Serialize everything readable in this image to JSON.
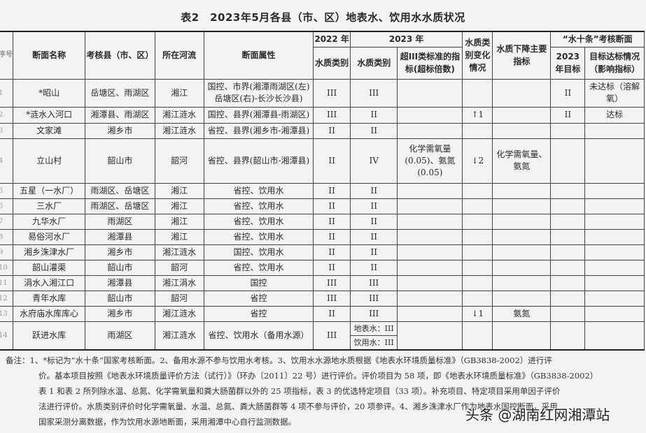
{
  "title": "表2　2023年5月各县（市、区）地表水、饮用水水质状况",
  "header": {
    "seq": "序号",
    "name": "断面名称",
    "county": "考核县（市、区）",
    "river": "所在河流",
    "attr": "断面属性",
    "y2022": "2022 年",
    "y2023": "2023 年",
    "change": "水质类别变化情况",
    "decline": "水质下降主要指标",
    "shuishitiao": "“水十条”考核断面",
    "class2022": "水质类别",
    "class2023": "水质类别",
    "exceed": "超III类标准的指标(超标倍数)",
    "target": "2023 年目标",
    "status": "目标达标情况（影响指标）"
  },
  "rows": [
    {
      "no": "1",
      "name": "*昭山",
      "county": "岳塘区、雨湖区",
      "river": "湘江",
      "attr": "国控、市界(湘潭雨湖区(左)岳塘区(右)-长沙长沙县)",
      "c2022": "III",
      "c2023": "III",
      "exceed": "",
      "change": "",
      "decline": "",
      "target": "II",
      "status": "未达标（溶解氧）"
    },
    {
      "no": "2",
      "name": "*涟水入河口",
      "county": "湘潭县、雨湖区",
      "river": "湘江涟水",
      "attr": "国控、县界(湘潭县-雨湖区)",
      "c2022": "III",
      "c2023": "II",
      "exceed": "",
      "change": "↑1",
      "decline": "",
      "target": "II",
      "status": "达标"
    },
    {
      "no": "3",
      "name": "文家滩",
      "county": "湘乡市",
      "river": "湘江涟水",
      "attr": "省控、县界(湘乡市-湘潭县)",
      "c2022": "II",
      "c2023": "II",
      "exceed": "",
      "change": "",
      "decline": "",
      "target": "",
      "status": ""
    },
    {
      "no": "4",
      "name": "立山村",
      "county": "韶山市",
      "river": "韶河",
      "attr": "省控、县界(韶山市-湘潭县)",
      "c2022": "II",
      "c2023": "IV",
      "exceed": "化学需氧量(0.05)、氨氮(0.05)",
      "change": "↓2",
      "decline": "化学需氧量、氨氮",
      "target": "",
      "status": ""
    },
    {
      "no": "5",
      "name": "五星（一水厂）",
      "county": "雨湖区、岳塘区",
      "river": "湘江",
      "attr": "省控、饮用水",
      "c2022": "II",
      "c2023": "II",
      "exceed": "",
      "change": "",
      "decline": "",
      "target": "",
      "status": ""
    },
    {
      "no": "6",
      "name": "三水厂",
      "county": "雨湖区、岳塘区",
      "river": "湘江",
      "attr": "省控、饮用水",
      "c2022": "II",
      "c2023": "II",
      "exceed": "",
      "change": "",
      "decline": "",
      "target": "",
      "status": ""
    },
    {
      "no": "7",
      "name": "九华水厂",
      "county": "雨湖区",
      "river": "湘江",
      "attr": "省控、饮用水",
      "c2022": "II",
      "c2023": "II",
      "exceed": "",
      "change": "",
      "decline": "",
      "target": "",
      "status": ""
    },
    {
      "no": "8",
      "name": "易俗河水厂",
      "county": "湘潭县",
      "river": "湘江",
      "attr": "省控、饮用水",
      "c2022": "II",
      "c2023": "II",
      "exceed": "",
      "change": "",
      "decline": "",
      "target": "",
      "status": ""
    },
    {
      "no": "9",
      "name": "湘乡洙津水厂",
      "county": "湘乡市",
      "river": "湘江涟水",
      "attr": "国控、饮用水",
      "c2022": "II",
      "c2023": "II",
      "exceed": "",
      "change": "",
      "decline": "",
      "target": "",
      "status": ""
    },
    {
      "no": "10",
      "name": "韶山灌渠",
      "county": "韶山市",
      "river": "韶河",
      "attr": "省控、饮用水",
      "c2022": "II",
      "c2023": "II",
      "exceed": "",
      "change": "",
      "decline": "",
      "target": "",
      "status": ""
    },
    {
      "no": "11",
      "name": "涓水入湘江口",
      "county": "湘潭县",
      "river": "湘江涓水",
      "attr": "国控",
      "c2022": "III",
      "c2023": "III",
      "exceed": "",
      "change": "",
      "decline": "",
      "target": "",
      "status": ""
    },
    {
      "no": "12",
      "name": "青年水库",
      "county": "韶山市",
      "river": "韶河",
      "attr": "省控",
      "c2022": "III",
      "c2023": "III",
      "exceed": "",
      "change": "",
      "decline": "",
      "target": "",
      "status": ""
    },
    {
      "no": "13",
      "name": "水府庙水库库心",
      "county": "湘乡市",
      "river": "湘江涟水",
      "attr": "省控",
      "c2022": "II",
      "c2023": "III",
      "exceed": "",
      "change": "↓1",
      "decline": "氨氮",
      "target": "",
      "status": ""
    },
    {
      "no": "14",
      "name": "跃进水库",
      "county": "雨湖区",
      "river": "湘江涟水",
      "attr": "省控、饮用水（备用水源）",
      "c2022": "III",
      "c2023_surface": "地表水：III",
      "c2023_drinking": "饮用水：III",
      "exceed": "",
      "change": "",
      "decline": "",
      "target": "",
      "status": ""
    }
  ],
  "notes": {
    "line1": "备注：1、*标记为“水十条“国家考核断面。2、备用水源不参与饮用水考核。3、饮用水水源地水质根据《地表水环境质量标准》（GB3838-2002）进行评",
    "line2": "价。基本项目按照《地表水环境质量评价方法（试行）》（环办〔2011〕22 号）进行评价。评价项目为 58 项，即《地表水环境质量标准》（GB3838-2002）",
    "line3": "表 1 和表 2 所列除水温、总氮、化学需氧量和粪大肠菌群以外的 25 项指标，表 3 的优选特定项目（33 项）。补充项目、特定项目采用单因子评价",
    "line4": "法进行评价。水质类别评价时化学需氧量、水温、总氮、粪大肠菌群等 4 项不参与评价，20 项参评。4、湘乡洙津水厂作为地表水国控断面，采用",
    "line5": "国家采测分离数据，作为饮用水源地断面，采用湘潭中心自行监测数据。"
  },
  "watermark": "头条 @湖南红网湘潭站"
}
